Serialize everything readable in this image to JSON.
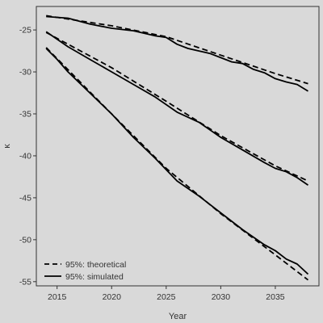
{
  "chart_data": {
    "type": "line",
    "title": "",
    "xlabel": "Year",
    "ylabel": "κ",
    "xlim": [
      2013.1,
      2039.0
    ],
    "ylim": [
      -55.5,
      -22.2
    ],
    "xticks": [
      2015,
      2020,
      2025,
      2030,
      2035
    ],
    "yticks": [
      -25,
      -30,
      -35,
      -40,
      -45,
      -50,
      -55
    ],
    "grid": false,
    "legend_position": "bottom-left",
    "legend": [
      {
        "label": "95%: theoretical",
        "style": "dashed"
      },
      {
        "label": "95%: simulated",
        "style": "solid"
      }
    ],
    "series": [
      {
        "group": "upper",
        "style": "dashed",
        "x": [
          2014,
          2020,
          2025,
          2030,
          2035,
          2038
        ],
        "y": [
          -23.3,
          -24.5,
          -25.8,
          -28.0,
          -30.2,
          -31.4
        ]
      },
      {
        "group": "upper",
        "style": "solid",
        "x": [
          2014,
          2016,
          2018,
          2020,
          2022,
          2024,
          2025,
          2026,
          2027,
          2028,
          2029,
          2030,
          2031,
          2032,
          2033,
          2034,
          2035,
          2036,
          2037,
          2038
        ],
        "y": [
          -23.4,
          -23.6,
          -24.3,
          -24.8,
          -25.1,
          -25.7,
          -25.9,
          -26.7,
          -27.2,
          -27.5,
          -27.8,
          -28.3,
          -28.8,
          -29.0,
          -29.7,
          -30.1,
          -30.8,
          -31.2,
          -31.5,
          -32.3
        ]
      },
      {
        "group": "middle",
        "style": "dashed",
        "x": [
          2014,
          2020,
          2025,
          2030,
          2035,
          2038
        ],
        "y": [
          -25.3,
          -29.5,
          -33.5,
          -37.6,
          -41.2,
          -43.0
        ]
      },
      {
        "group": "middle",
        "style": "solid",
        "x": [
          2014,
          2016,
          2018,
          2020,
          2022,
          2024,
          2026,
          2028,
          2030,
          2032,
          2034,
          2035,
          2036,
          2037,
          2038
        ],
        "y": [
          -25.2,
          -27.0,
          -28.5,
          -30.0,
          -31.5,
          -33.0,
          -34.8,
          -36.0,
          -37.8,
          -39.3,
          -40.8,
          -41.5,
          -41.9,
          -42.6,
          -43.5
        ]
      },
      {
        "group": "lower",
        "style": "dashed",
        "x": [
          2014,
          2020,
          2025,
          2030,
          2035,
          2038
        ],
        "y": [
          -27.1,
          -35.0,
          -41.5,
          -46.9,
          -51.8,
          -54.8
        ]
      },
      {
        "group": "lower",
        "style": "solid",
        "x": [
          2014,
          2015,
          2016,
          2018,
          2020,
          2022,
          2024,
          2026,
          2028,
          2030,
          2032,
          2034,
          2035,
          2036,
          2037,
          2038
        ],
        "y": [
          -27.2,
          -28.5,
          -30.0,
          -32.5,
          -35.0,
          -37.8,
          -40.3,
          -43.0,
          -44.8,
          -46.8,
          -48.8,
          -50.6,
          -51.3,
          -52.3,
          -52.9,
          -54.1
        ]
      }
    ]
  },
  "colors": {
    "background": "#d9d9d9",
    "line": "#000000",
    "axis": "#333333",
    "text": "#333333"
  }
}
